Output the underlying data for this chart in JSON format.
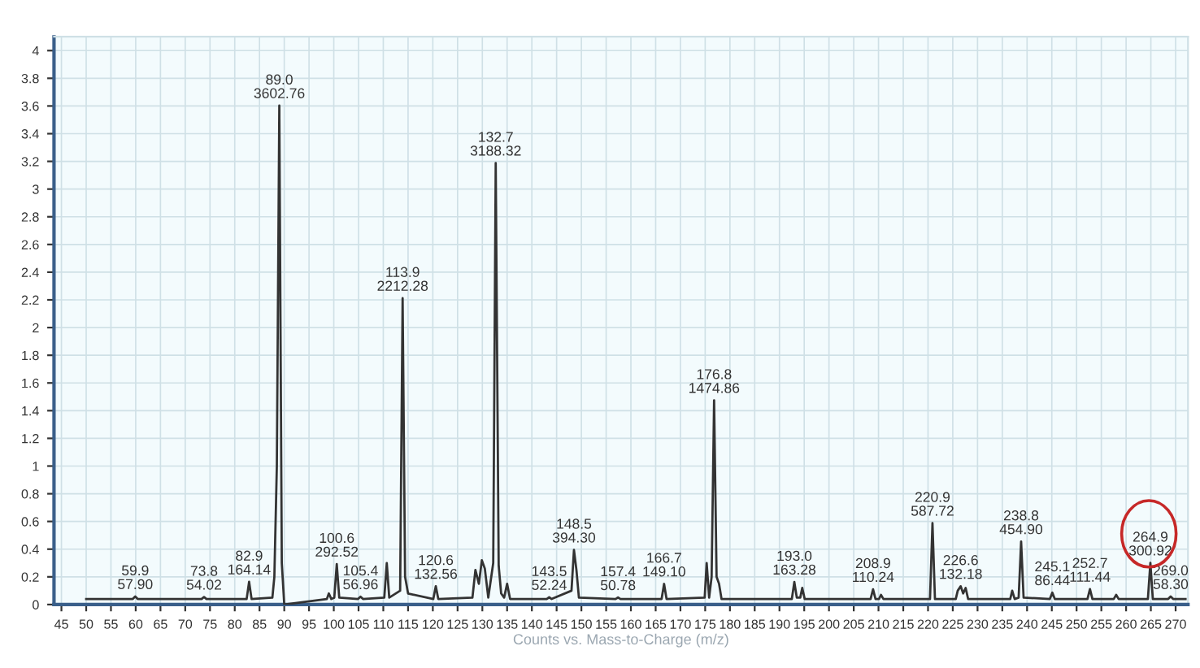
{
  "chart_data": {
    "type": "line",
    "xlabel": "Counts vs. Mass-to-Charge (m/z)",
    "xlim": [
      43.5,
      272.5
    ],
    "xticks": [
      45,
      50,
      55,
      60,
      65,
      70,
      75,
      80,
      85,
      90,
      95,
      100,
      105,
      110,
      115,
      120,
      125,
      130,
      135,
      140,
      145,
      150,
      155,
      160,
      165,
      170,
      175,
      180,
      185,
      190,
      195,
      200,
      205,
      210,
      215,
      220,
      225,
      230,
      235,
      240,
      245,
      250,
      255,
      260,
      265,
      270
    ],
    "ylim": [
      0,
      4.1
    ],
    "yticks": [
      0,
      0.2,
      0.4,
      0.6,
      0.8,
      1,
      1.2,
      1.4,
      1.6,
      1.8,
      2,
      2.2,
      2.4,
      2.6,
      2.8,
      3,
      3.2,
      3.4,
      3.6,
      3.8,
      4
    ],
    "grid": true,
    "marker": "none",
    "line_style": "solid",
    "series": [
      {
        "color": "#333333",
        "x": [
          50,
          59.4,
          59.9,
          60.4,
          73.3,
          73.8,
          74.3,
          82.4,
          82.9,
          83.4,
          87.6,
          88.0,
          88.5,
          89.0,
          89.5,
          90.0,
          98.6,
          99.0,
          99.5,
          100.1,
          100.6,
          101.1,
          104.9,
          105.4,
          105.9,
          110.2,
          110.7,
          111.2,
          113.4,
          113.9,
          114.4,
          115,
          120.1,
          120.6,
          121.1,
          128,
          128.6,
          129.3,
          129.9,
          130.5,
          131.2,
          132.2,
          132.7,
          133.3,
          133.8,
          134.4,
          135,
          135.6,
          143,
          143.5,
          144,
          148,
          148.5,
          149,
          149.5,
          156.9,
          157.4,
          157.9,
          166.2,
          166.7,
          167.2,
          174.9,
          175.3,
          175.8,
          176.3,
          176.8,
          177.3,
          177.8,
          178.3,
          192.5,
          193.0,
          193.5,
          194.2,
          194.6,
          195.1,
          208.4,
          208.9,
          209.4,
          210.1,
          210.5,
          211,
          220.4,
          220.9,
          221.4,
          225.6,
          226.0,
          226.6,
          227.1,
          227.6,
          228.1,
          236.6,
          237.0,
          237.5,
          238.3,
          238.8,
          239.3,
          244.6,
          245.1,
          245.6,
          252.2,
          252.7,
          253.2,
          257.5,
          258.0,
          258.5,
          264.4,
          264.9,
          265.4,
          268.5,
          269.0,
          269.5,
          272
        ],
        "values": [
          0.04,
          0.04,
          0.0579,
          0.04,
          0.04,
          0.054,
          0.04,
          0.04,
          0.164,
          0.04,
          0.05,
          0.2,
          1.0,
          3.60276,
          0.3,
          0.0,
          0.04,
          0.08,
          0.04,
          0.05,
          0.29252,
          0.05,
          0.04,
          0.05696,
          0.04,
          0.05,
          0.3,
          0.05,
          0.1,
          2.21228,
          0.2,
          0.08,
          0.04,
          0.13256,
          0.04,
          0.05,
          0.25,
          0.15,
          0.32,
          0.26,
          0.05,
          0.3,
          3.18832,
          0.28,
          0.08,
          0.05,
          0.15,
          0.04,
          0.04,
          0.05224,
          0.04,
          0.1,
          0.3943,
          0.25,
          0.05,
          0.04,
          0.05078,
          0.04,
          0.04,
          0.1491,
          0.04,
          0.05,
          0.3,
          0.05,
          0.2,
          1.47486,
          0.2,
          0.15,
          0.04,
          0.04,
          0.16328,
          0.05,
          0.05,
          0.12,
          0.04,
          0.04,
          0.11024,
          0.04,
          0.04,
          0.07,
          0.04,
          0.04,
          0.58772,
          0.04,
          0.04,
          0.1,
          0.13218,
          0.08,
          0.12,
          0.04,
          0.04,
          0.1,
          0.04,
          0.05,
          0.4549,
          0.05,
          0.04,
          0.08644,
          0.04,
          0.04,
          0.11144,
          0.04,
          0.04,
          0.07,
          0.04,
          0.04,
          0.30092,
          0.04,
          0.04,
          0.0583,
          0.04,
          0.04
        ]
      }
    ],
    "annotations": [
      {
        "text": "59.9\n57.90",
        "x": 59.9,
        "y": 0.0579
      },
      {
        "text": "73.8\n54.02",
        "x": 73.8,
        "y": 0.054
      },
      {
        "text": "82.9\n164.14",
        "x": 82.9,
        "y": 0.16414
      },
      {
        "text": "89.0\n3602.76",
        "x": 89.0,
        "y": 3.60276
      },
      {
        "text": "100.6\n292.52",
        "x": 100.6,
        "y": 0.29252
      },
      {
        "text": "105.4\n56.96",
        "x": 105.4,
        "y": 0.05696
      },
      {
        "text": "113.9\n2212.28",
        "x": 113.9,
        "y": 2.21228
      },
      {
        "text": "120.6\n132.56",
        "x": 120.6,
        "y": 0.13256
      },
      {
        "text": "132.7\n3188.32",
        "x": 132.7,
        "y": 3.18832
      },
      {
        "text": "143.5\n52.24",
        "x": 143.5,
        "y": 0.05224
      },
      {
        "text": "148.5\n394.30",
        "x": 148.5,
        "y": 0.3943
      },
      {
        "text": "157.4\n50.78",
        "x": 157.4,
        "y": 0.05078
      },
      {
        "text": "166.7\n149.10",
        "x": 166.7,
        "y": 0.1491
      },
      {
        "text": "176.8\n1474.86",
        "x": 176.8,
        "y": 1.47486
      },
      {
        "text": "193.0\n163.28",
        "x": 193.0,
        "y": 0.16328
      },
      {
        "text": "208.9\n110.24",
        "x": 208.9,
        "y": 0.11024
      },
      {
        "text": "220.9\n587.72",
        "x": 220.9,
        "y": 0.58772
      },
      {
        "text": "226.6\n132.18",
        "x": 226.6,
        "y": 0.13218
      },
      {
        "text": "238.8\n454.90",
        "x": 238.8,
        "y": 0.4549
      },
      {
        "text": "245.1\n86.44",
        "x": 245.1,
        "y": 0.08644
      },
      {
        "text": "252.7\n111.44",
        "x": 252.7,
        "y": 0.11144
      },
      {
        "text": "264.9\n300.92",
        "x": 264.9,
        "y": 0.30092
      },
      {
        "text": "269.0\n58.30",
        "x": 269.0,
        "y": 0.0583
      }
    ]
  }
}
